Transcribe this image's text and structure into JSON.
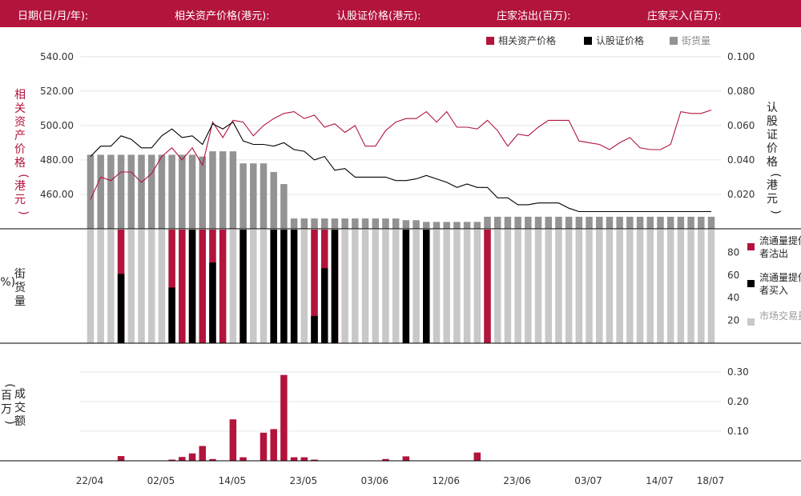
{
  "header": {
    "date_label": "日期(日/月/年):",
    "asset_price_label": "相关资产价格(港元):",
    "warrant_price_label": "认股证价格(港元):",
    "dealer_sell_label": "庄家沽出(百万):",
    "dealer_buy_label": "庄家买入(百万):"
  },
  "legend": {
    "asset_price": "相关资产价格",
    "warrant_price": "认股证价格",
    "outstanding": "街货量"
  },
  "colors": {
    "brand": "#b2143c",
    "warrant": "#000000",
    "outstanding_dark": "#939393",
    "outstanding_light": "#c8c8c8"
  },
  "chart_data": [
    {
      "type": "line",
      "panel": "price",
      "left_axis_label": "相关资产价格(港元)",
      "right_axis_label": "认股证价格(港元)",
      "left_ticks": [
        "460.00",
        "480.00",
        "500.00",
        "520.00",
        "540.00"
      ],
      "right_ticks": [
        "0.020",
        "0.040",
        "0.060",
        "0.080",
        "0.100"
      ],
      "ylim_left": [
        440,
        545
      ],
      "ylim_right": [
        0.0,
        0.105
      ],
      "series": [
        {
          "name": "相关资产价格",
          "axis": "left",
          "values": [
            457,
            470,
            468,
            473,
            473,
            467,
            472,
            482,
            487,
            480,
            487,
            477,
            502,
            493,
            503,
            502,
            494,
            500,
            504,
            507,
            508,
            504,
            506,
            499,
            501,
            496,
            500,
            488,
            488,
            497,
            502,
            504,
            504,
            508,
            502,
            508,
            499,
            499,
            498,
            503,
            497,
            488,
            495,
            494,
            499,
            503,
            503,
            503,
            491,
            490,
            489,
            486,
            490,
            493,
            487,
            486,
            486,
            489,
            508,
            507,
            507,
            509
          ]
        },
        {
          "name": "认股证价格",
          "axis": "right",
          "values": [
            0.042,
            0.048,
            0.048,
            0.054,
            0.052,
            0.047,
            0.047,
            0.054,
            0.058,
            0.053,
            0.054,
            0.049,
            0.061,
            0.058,
            0.062,
            0.051,
            0.049,
            0.049,
            0.048,
            0.05,
            0.046,
            0.045,
            0.04,
            0.042,
            0.034,
            0.035,
            0.03,
            0.03,
            0.03,
            0.03,
            0.028,
            0.028,
            0.029,
            0.031,
            0.029,
            0.027,
            0.024,
            0.026,
            0.024,
            0.024,
            0.018,
            0.018,
            0.014,
            0.014,
            0.015,
            0.015,
            0.015,
            0.012,
            0.01,
            0.01,
            0.01,
            0.01,
            0.01,
            0.01,
            0.01,
            0.01,
            0.01,
            0.01,
            0.01,
            0.01,
            0.01,
            0.01
          ]
        }
      ],
      "outstanding_bars_right_units": [
        0.043,
        0.043,
        0.043,
        0.043,
        0.043,
        0.043,
        0.043,
        0.043,
        0.043,
        0.043,
        0.043,
        0.042,
        0.045,
        0.045,
        0.045,
        0.038,
        0.038,
        0.038,
        0.033,
        0.026,
        0.006,
        0.006,
        0.006,
        0.006,
        0.006,
        0.006,
        0.006,
        0.006,
        0.006,
        0.006,
        0.006,
        0.005,
        0.005,
        0.004,
        0.004,
        0.004,
        0.004,
        0.004,
        0.004,
        0.007,
        0.007,
        0.007,
        0.007,
        0.007,
        0.007,
        0.007,
        0.007,
        0.007,
        0.007,
        0.007,
        0.007,
        0.007,
        0.007,
        0.007,
        0.007,
        0.007,
        0.007,
        0.007,
        0.007,
        0.007,
        0.007,
        0.007
      ]
    },
    {
      "type": "bar",
      "panel": "turnover-share",
      "axis_label": "街货量(%)",
      "ticks": [
        "20",
        "40",
        "60",
        "80"
      ],
      "ylim": [
        0,
        100
      ],
      "legend": [
        {
          "label": "流通量提供者沽出",
          "color": "#b2143c"
        },
        {
          "label": "流通量提供者买入",
          "color": "#000000"
        },
        {
          "label": "市场交易量",
          "color": "#c8c8c8"
        }
      ],
      "red_fill_percent": [
        0,
        0,
        0,
        100,
        0,
        0,
        0,
        0,
        100,
        100,
        100,
        100,
        100,
        100,
        0,
        0,
        0,
        0,
        0,
        0,
        0,
        0,
        100,
        100,
        100,
        0,
        0,
        0,
        0,
        0,
        0,
        0,
        0,
        0,
        0,
        0,
        0,
        0,
        0,
        100,
        0,
        0,
        0,
        0,
        0,
        0,
        0,
        0,
        0,
        0,
        0,
        0,
        0,
        0,
        0,
        0,
        0,
        0,
        0,
        0,
        0,
        0
      ],
      "black_fill_percent": [
        0,
        0,
        0,
        61,
        0,
        0,
        0,
        0,
        49,
        0,
        100,
        0,
        71,
        0,
        0,
        100,
        0,
        0,
        100,
        100,
        100,
        0,
        24,
        66,
        100,
        0,
        0,
        0,
        0,
        0,
        0,
        100,
        0,
        100,
        0,
        0,
        0,
        0,
        0,
        0,
        0,
        0,
        0,
        0,
        0,
        0,
        0,
        0,
        0,
        0,
        0,
        0,
        0,
        0,
        0,
        0,
        0,
        0,
        0,
        0,
        0,
        0
      ]
    },
    {
      "type": "bar",
      "panel": "turnover",
      "axis_label": "成交额(百万)",
      "ticks": [
        "0.10",
        "0.20",
        "0.30"
      ],
      "ylim": [
        0,
        0.3
      ],
      "values": [
        0,
        0,
        0,
        0.016,
        0,
        0,
        0,
        0,
        0.004,
        0.013,
        0.025,
        0.05,
        0.006,
        0,
        0.14,
        0.012,
        0,
        0.095,
        0.107,
        0.29,
        0.012,
        0.012,
        0.004,
        0,
        0,
        0,
        0,
        0,
        0,
        0.006,
        0,
        0.015,
        0,
        0,
        0,
        0,
        0,
        0,
        0.028,
        0,
        0,
        0,
        0,
        0,
        0,
        0,
        0,
        0,
        0,
        0,
        0,
        0,
        0,
        0,
        0,
        0,
        0,
        0,
        0,
        0,
        0,
        0
      ]
    }
  ],
  "x_labels": [
    "22/04",
    "02/05",
    "14/05",
    "23/05",
    "03/06",
    "12/06",
    "23/06",
    "03/07",
    "14/07",
    "18/07"
  ],
  "x_label_index": [
    0,
    7,
    14,
    21,
    28,
    35,
    42,
    49,
    56,
    61
  ]
}
